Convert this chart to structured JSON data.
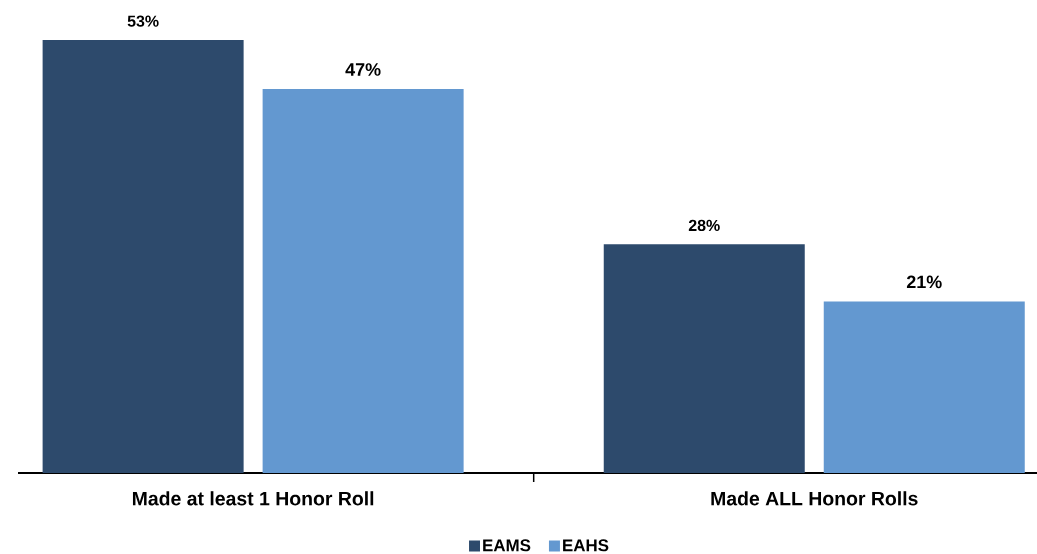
{
  "chart_data": {
    "type": "bar",
    "categories": [
      "Made at least 1 Honor Roll",
      "Made ALL Honor Rolls"
    ],
    "series": [
      {
        "name": "EAMS",
        "color": "#2d4a6c",
        "values": [
          53,
          28
        ],
        "value_labels": [
          "53%",
          "28%"
        ]
      },
      {
        "name": "EAHS",
        "color": "#6398d0",
        "values": [
          47,
          21
        ],
        "value_labels": [
          "47%",
          "21%"
        ]
      }
    ],
    "tick_labels": "x",
    "legend": "bottom"
  }
}
